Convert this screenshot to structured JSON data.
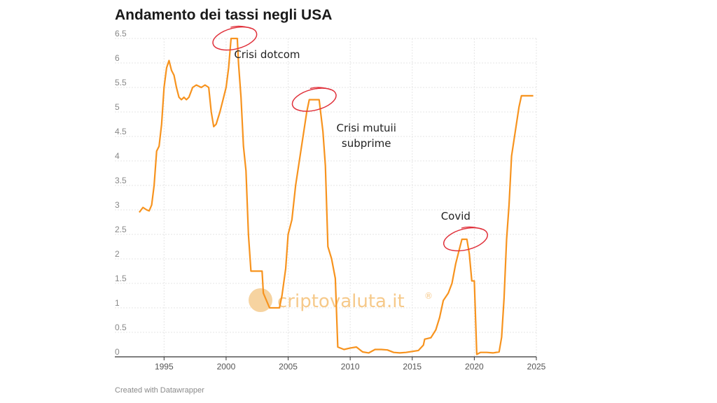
{
  "header": {
    "title": "Andamento dei tassi negli USA"
  },
  "footer": {
    "credit": "Created with Datawrapper"
  },
  "watermark": {
    "text": "criptovaluta.it",
    "mark": "®",
    "color": "#f6c98a"
  },
  "colors": {
    "line": "#f7931e",
    "highlight": "#e0303a",
    "grid": "#e6e6e6",
    "axis": "#333333"
  },
  "chart_data": {
    "type": "line",
    "title": "Andamento dei tassi negli USA",
    "xlabel": "",
    "ylabel": "",
    "xlim": [
      1992.5,
      2025
    ],
    "ylim": [
      0,
      6.5
    ],
    "x_ticks": [
      "1995",
      "2000",
      "2005",
      "2010",
      "2015",
      "2020",
      "2025"
    ],
    "y_ticks": [
      "0",
      "0.5",
      "1",
      "1.5",
      "2",
      "2.5",
      "3",
      "3.5",
      "4",
      "4.5",
      "5",
      "5.5",
      "6",
      "6.5"
    ],
    "grid": true,
    "series": [
      {
        "points": [
          [
            1993.0,
            2.95
          ],
          [
            1993.3,
            3.05
          ],
          [
            1993.6,
            3.0
          ],
          [
            1993.8,
            2.98
          ],
          [
            1994.0,
            3.1
          ],
          [
            1994.2,
            3.5
          ],
          [
            1994.4,
            4.2
          ],
          [
            1994.6,
            4.3
          ],
          [
            1994.8,
            4.75
          ],
          [
            1995.0,
            5.5
          ],
          [
            1995.2,
            5.9
          ],
          [
            1995.4,
            6.05
          ],
          [
            1995.6,
            5.85
          ],
          [
            1995.8,
            5.75
          ],
          [
            1996.0,
            5.5
          ],
          [
            1996.2,
            5.3
          ],
          [
            1996.4,
            5.25
          ],
          [
            1996.6,
            5.3
          ],
          [
            1996.8,
            5.25
          ],
          [
            1997.0,
            5.3
          ],
          [
            1997.3,
            5.5
          ],
          [
            1997.6,
            5.55
          ],
          [
            1998.0,
            5.5
          ],
          [
            1998.3,
            5.55
          ],
          [
            1998.6,
            5.5
          ],
          [
            1998.8,
            5.0
          ],
          [
            1999.0,
            4.7
          ],
          [
            1999.2,
            4.75
          ],
          [
            1999.5,
            5.0
          ],
          [
            1999.8,
            5.3
          ],
          [
            2000.0,
            5.5
          ],
          [
            2000.2,
            5.9
          ],
          [
            2000.4,
            6.5
          ],
          [
            2000.6,
            6.5
          ],
          [
            2000.9,
            6.5
          ],
          [
            2001.0,
            6.0
          ],
          [
            2001.2,
            5.3
          ],
          [
            2001.4,
            4.3
          ],
          [
            2001.6,
            3.8
          ],
          [
            2001.8,
            2.5
          ],
          [
            2002.0,
            1.75
          ],
          [
            2002.5,
            1.75
          ],
          [
            2002.9,
            1.75
          ],
          [
            2003.0,
            1.3
          ],
          [
            2003.5,
            1.0
          ],
          [
            2004.0,
            1.0
          ],
          [
            2004.3,
            1.0
          ],
          [
            2004.5,
            1.25
          ],
          [
            2004.8,
            1.8
          ],
          [
            2005.0,
            2.5
          ],
          [
            2005.3,
            2.8
          ],
          [
            2005.6,
            3.5
          ],
          [
            2005.9,
            4.0
          ],
          [
            2006.2,
            4.5
          ],
          [
            2006.5,
            5.0
          ],
          [
            2006.7,
            5.25
          ],
          [
            2007.0,
            5.25
          ],
          [
            2007.5,
            5.25
          ],
          [
            2007.8,
            4.6
          ],
          [
            2008.0,
            3.9
          ],
          [
            2008.2,
            2.25
          ],
          [
            2008.5,
            2.0
          ],
          [
            2008.8,
            1.6
          ],
          [
            2009.0,
            0.2
          ],
          [
            2009.5,
            0.15
          ],
          [
            2010.0,
            0.18
          ],
          [
            2010.5,
            0.2
          ],
          [
            2011.0,
            0.1
          ],
          [
            2011.5,
            0.08
          ],
          [
            2012.0,
            0.15
          ],
          [
            2012.5,
            0.15
          ],
          [
            2013.0,
            0.14
          ],
          [
            2013.5,
            0.09
          ],
          [
            2014.0,
            0.08
          ],
          [
            2014.5,
            0.09
          ],
          [
            2015.0,
            0.11
          ],
          [
            2015.5,
            0.13
          ],
          [
            2015.9,
            0.24
          ],
          [
            2016.0,
            0.36
          ],
          [
            2016.5,
            0.39
          ],
          [
            2016.9,
            0.55
          ],
          [
            2017.2,
            0.8
          ],
          [
            2017.5,
            1.15
          ],
          [
            2017.9,
            1.3
          ],
          [
            2018.2,
            1.5
          ],
          [
            2018.5,
            1.9
          ],
          [
            2018.8,
            2.2
          ],
          [
            2019.0,
            2.4
          ],
          [
            2019.4,
            2.4
          ],
          [
            2019.6,
            2.1
          ],
          [
            2019.8,
            1.55
          ],
          [
            2020.0,
            1.55
          ],
          [
            2020.2,
            0.05
          ],
          [
            2020.5,
            0.09
          ],
          [
            2021.0,
            0.09
          ],
          [
            2021.5,
            0.08
          ],
          [
            2022.0,
            0.1
          ],
          [
            2022.2,
            0.4
          ],
          [
            2022.4,
            1.2
          ],
          [
            2022.6,
            2.4
          ],
          [
            2022.8,
            3.1
          ],
          [
            2023.0,
            4.1
          ],
          [
            2023.3,
            4.6
          ],
          [
            2023.6,
            5.1
          ],
          [
            2023.8,
            5.33
          ],
          [
            2024.0,
            5.33
          ],
          [
            2024.5,
            5.33
          ],
          [
            2024.75,
            5.33
          ]
        ]
      }
    ],
    "annotations": [
      {
        "text": "Crisi dotcom",
        "x": 2003.3,
        "y": 6.1,
        "circle": [
          2000.7,
          6.5
        ]
      },
      {
        "text": "Crisi mutuii",
        "text2": "subprime",
        "x": 2011.3,
        "y": 4.6,
        "circle": [
          2007.1,
          5.25
        ]
      },
      {
        "text": "Covid",
        "x": 2018.5,
        "y": 2.8,
        "circle": [
          2019.3,
          2.4
        ]
      }
    ]
  }
}
